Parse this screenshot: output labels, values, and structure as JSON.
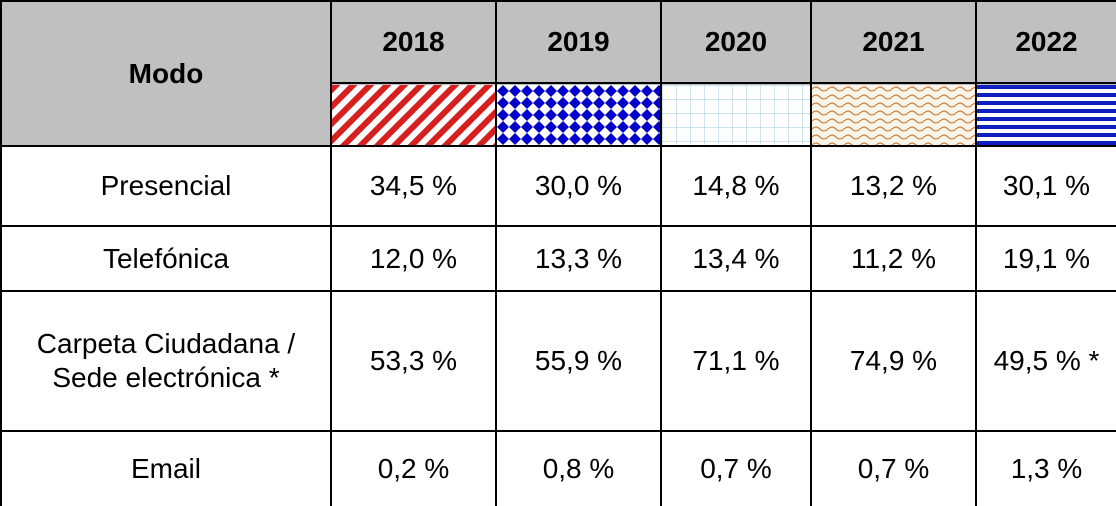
{
  "table": {
    "header": [
      "Modo",
      "2018",
      "2019",
      "2020",
      "2021",
      "2022"
    ],
    "rows": [
      [
        "Presencial",
        "34,5 %",
        "30,0 %",
        "14,8 %",
        "13,2 %",
        "30,1 %"
      ],
      [
        "Telefónica",
        "12,0 %",
        "13,3 %",
        "13,4 %",
        "11,2 %",
        "19,1 %"
      ],
      [
        "Carpeta Ciudadana / Sede electrónica *",
        "53,3 %",
        "55,9 %",
        "71,1 %",
        "74,9 %",
        "49,5 % *"
      ],
      [
        "Email",
        "0,2 %",
        "0,8 %",
        "0,7 %",
        "0,7 %",
        "1,3 %"
      ]
    ]
  }
}
